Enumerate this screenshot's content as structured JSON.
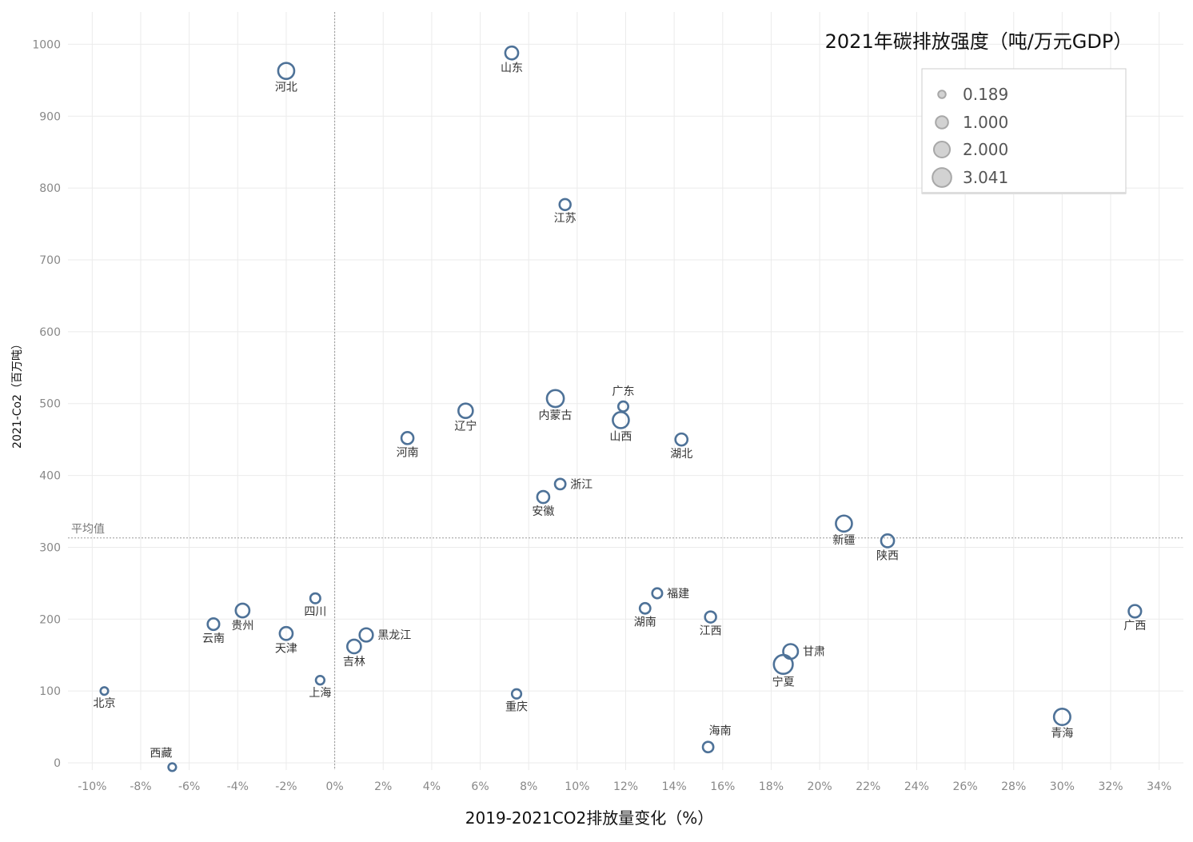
{
  "chart_data": {
    "type": "scatter",
    "title": "2021年碳排放强度（吨/万元GDP）",
    "xlabel": "2019-2021CO2排放量变化（%）",
    "ylabel": "2021-Co2（百万吨）",
    "xlim": [
      -11,
      35
    ],
    "ylim": [
      -10,
      1045
    ],
    "x_ticks": [
      -10,
      -8,
      -6,
      -4,
      -2,
      0,
      2,
      4,
      6,
      8,
      10,
      12,
      14,
      16,
      18,
      20,
      22,
      24,
      26,
      28,
      30,
      32,
      34
    ],
    "x_tick_labels": [
      "-10%",
      "-8%",
      "-6%",
      "-4%",
      "-2%",
      "0%",
      "2%",
      "4%",
      "6%",
      "8%",
      "10%",
      "12%",
      "14%",
      "16%",
      "18%",
      "20%",
      "22%",
      "24%",
      "26%",
      "28%",
      "30%",
      "32%",
      "34%"
    ],
    "y_ticks": [
      0,
      100,
      200,
      300,
      400,
      500,
      600,
      700,
      800,
      900,
      1000
    ],
    "y_tick_labels": [
      "0",
      "100",
      "200",
      "300",
      "400",
      "500",
      "600",
      "700",
      "800",
      "900",
      "1000"
    ],
    "grid": true,
    "reference_lines": [
      {
        "axis": "y",
        "value": 313,
        "label": "平均值"
      },
      {
        "axis": "x",
        "value": 0,
        "label": ""
      }
    ],
    "size_legend": {
      "placement": "top-right",
      "entries": [
        {
          "label": "0.189",
          "value": 0.189
        },
        {
          "label": "1.000",
          "value": 1.0
        },
        {
          "label": "2.000",
          "value": 2.0
        },
        {
          "label": "3.041",
          "value": 3.041
        }
      ]
    },
    "points": [
      {
        "name": "河北",
        "x": -2.0,
        "y": 963,
        "size": 2.0,
        "label_pos": "below"
      },
      {
        "name": "山东",
        "x": 7.3,
        "y": 988,
        "size": 1.1,
        "label_pos": "below"
      },
      {
        "name": "江苏",
        "x": 9.5,
        "y": 777,
        "size": 0.7,
        "label_pos": "below"
      },
      {
        "name": "内蒙古",
        "x": 9.1,
        "y": 507,
        "size": 2.3,
        "label_pos": "below"
      },
      {
        "name": "广东",
        "x": 11.9,
        "y": 496,
        "size": 0.5,
        "label_pos": "above"
      },
      {
        "name": "山西",
        "x": 11.8,
        "y": 477,
        "size": 2.0,
        "label_pos": "below"
      },
      {
        "name": "辽宁",
        "x": 5.4,
        "y": 490,
        "size": 1.5,
        "label_pos": "below"
      },
      {
        "name": "河南",
        "x": 3.0,
        "y": 452,
        "size": 0.9,
        "label_pos": "below"
      },
      {
        "name": "湖北",
        "x": 14.3,
        "y": 450,
        "size": 0.9,
        "label_pos": "below"
      },
      {
        "name": "浙江",
        "x": 9.3,
        "y": 388,
        "size": 0.6,
        "label_pos": "right"
      },
      {
        "name": "安徽",
        "x": 8.6,
        "y": 370,
        "size": 0.9,
        "label_pos": "below"
      },
      {
        "name": "新疆",
        "x": 21.0,
        "y": 333,
        "size": 2.0,
        "label_pos": "below"
      },
      {
        "name": "陕西",
        "x": 22.8,
        "y": 309,
        "size": 1.1,
        "label_pos": "below"
      },
      {
        "name": "四川",
        "x": -0.8,
        "y": 229,
        "size": 0.5,
        "label_pos": "below"
      },
      {
        "name": "福建",
        "x": 13.3,
        "y": 236,
        "size": 0.5,
        "label_pos": "right"
      },
      {
        "name": "贵州",
        "x": -3.8,
        "y": 212,
        "size": 1.3,
        "label_pos": "below"
      },
      {
        "name": "湖南",
        "x": 12.8,
        "y": 215,
        "size": 0.6,
        "label_pos": "below"
      },
      {
        "name": "广西",
        "x": 33.0,
        "y": 211,
        "size": 1.0,
        "label_pos": "below"
      },
      {
        "name": "江西",
        "x": 15.5,
        "y": 203,
        "size": 0.7,
        "label_pos": "below"
      },
      {
        "name": "云南",
        "x": -5.0,
        "y": 193,
        "size": 0.8,
        "label_pos": "below"
      },
      {
        "name": "天津",
        "x": -2.0,
        "y": 180,
        "size": 1.1,
        "label_pos": "below"
      },
      {
        "name": "黑龙江",
        "x": 1.3,
        "y": 178,
        "size": 1.2,
        "label_pos": "right"
      },
      {
        "name": "吉林",
        "x": 0.8,
        "y": 162,
        "size": 1.3,
        "label_pos": "below"
      },
      {
        "name": "甘肃",
        "x": 18.8,
        "y": 155,
        "size": 1.6,
        "label_pos": "right"
      },
      {
        "name": "宁夏",
        "x": 18.5,
        "y": 137,
        "size": 3.041,
        "label_pos": "below"
      },
      {
        "name": "上海",
        "x": -0.6,
        "y": 115,
        "size": 0.3,
        "label_pos": "below"
      },
      {
        "name": "北京",
        "x": -9.5,
        "y": 100,
        "size": 0.189,
        "label_pos": "below"
      },
      {
        "name": "重庆",
        "x": 7.5,
        "y": 96,
        "size": 0.4,
        "label_pos": "below"
      },
      {
        "name": "青海",
        "x": 30.0,
        "y": 64,
        "size": 2.1,
        "label_pos": "below"
      },
      {
        "name": "海南",
        "x": 15.4,
        "y": 22,
        "size": 0.6,
        "label_pos": "above-right"
      },
      {
        "name": "西藏",
        "x": -6.7,
        "y": -6,
        "size": 0.2,
        "label_pos": "above-left"
      }
    ]
  },
  "colors": {
    "marker_stroke": "#4E7298",
    "grid": "#EBEBEB",
    "reference_line": "#999999",
    "legend_circle_fill": "#D2D2D2",
    "legend_circle_stroke": "#A8A8A8"
  }
}
